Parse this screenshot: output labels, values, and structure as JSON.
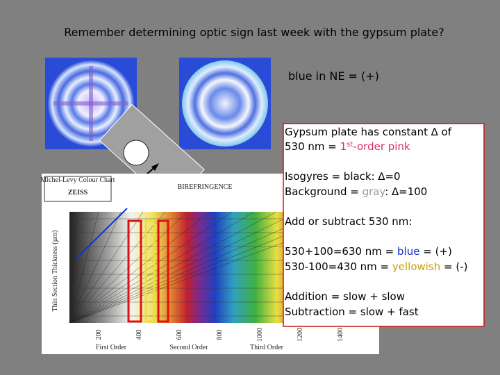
{
  "slide": {
    "title": "Remember determining optic sign last week with the gypsum plate?",
    "note": "blue in NE = (+)",
    "box": {
      "lines": [
        [
          {
            "text": "Gypsum plate has constant ∆ of"
          }
        ],
        [
          {
            "text": "530 nm = "
          },
          {
            "text": "1",
            "color": "#e0286c"
          },
          {
            "text": "st",
            "color": "#e0286c",
            "sup": true
          },
          {
            "text": "-order pink",
            "color": "#e0286c"
          }
        ],
        [
          {
            "text": "Isogyres = black:   ∆=0"
          }
        ],
        [
          {
            "text": "Background = "
          },
          {
            "text": "gray",
            "color": "#9a9a9a"
          },
          {
            "text": ":  ∆=100"
          }
        ],
        [
          {
            "text": "Add or subtract 530 nm:"
          }
        ],
        [
          {
            "text": "530+100=630 nm = "
          },
          {
            "text": "blue",
            "color": "#1428d2"
          },
          {
            "text": " = (+)"
          }
        ],
        [
          {
            "text": "530-100=430 nm = "
          },
          {
            "text": "yellowish",
            "color": "#c8a200"
          },
          {
            "text": " = (-)"
          }
        ],
        [
          {
            "text": "Addition = slow + slow"
          }
        ],
        [
          {
            "text": "Subtraction = slow + fast"
          }
        ]
      ]
    },
    "chart": {
      "title": "BIREFRINGENCE",
      "brand": "ZEISS",
      "caption": "Michel-Levy Colour Chart",
      "y_label": "Thin Section Thickness (µm)",
      "orders": [
        "First Order",
        "Second Order",
        "Third Order"
      ],
      "bottom_ticks": [
        "200",
        "400",
        "600",
        "800",
        "1000",
        "1200",
        "1400"
      ]
    }
  }
}
